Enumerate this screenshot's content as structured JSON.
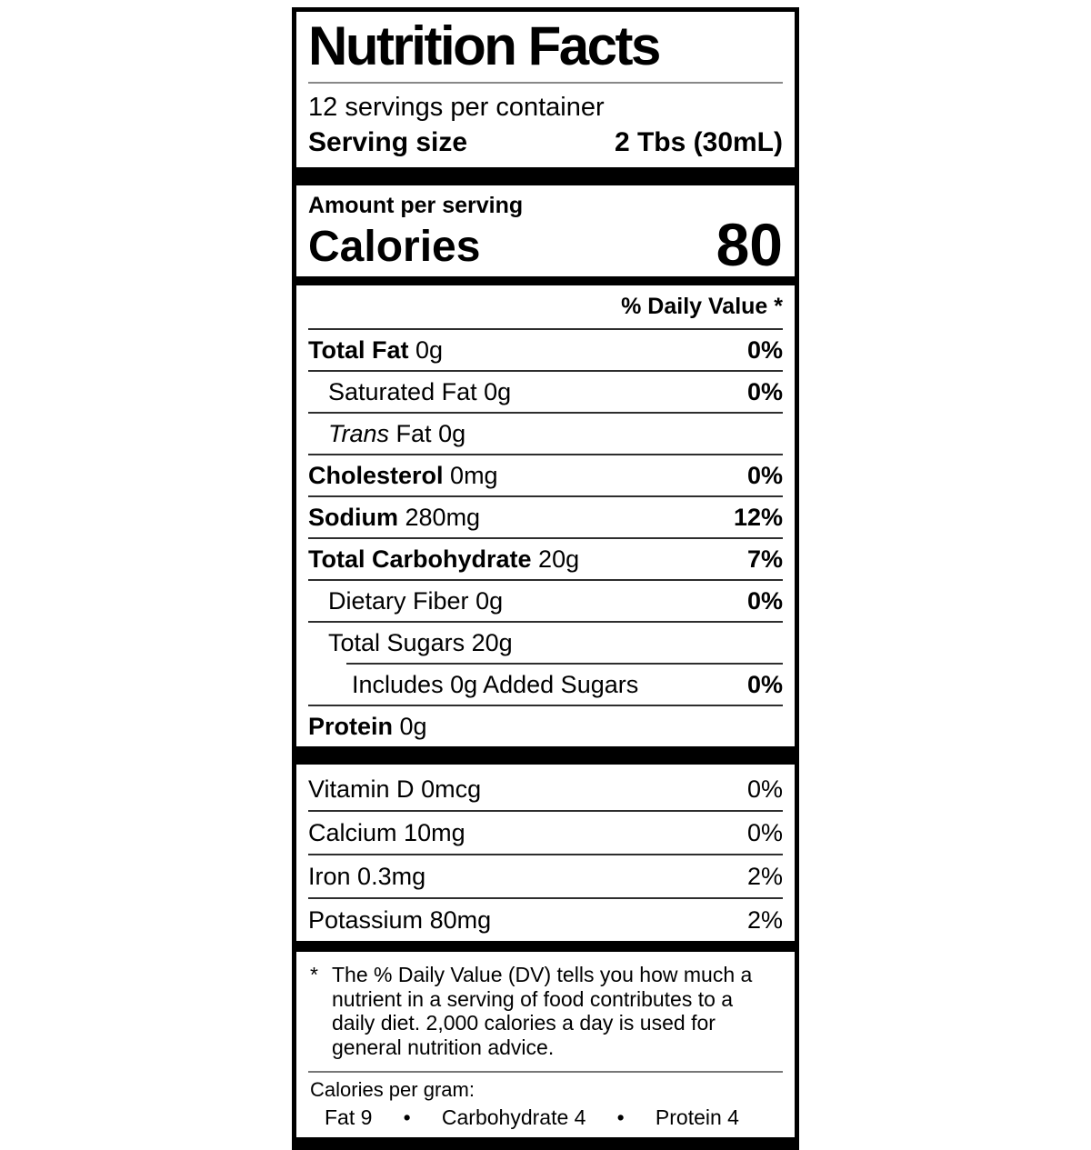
{
  "label": {
    "title": "Nutrition Facts",
    "servings_per_container": "12 servings per container",
    "serving_size_label": "Serving size",
    "serving_size_value": "2 Tbs (30mL)",
    "amount_per_serving": "Amount per serving",
    "calories_label": "Calories",
    "calories_value": "80",
    "daily_value_header": "% Daily Value *"
  },
  "nutrients": [
    {
      "name": "Total Fat",
      "value": "0g",
      "dv": "0%"
    },
    {
      "name": "Saturated Fat",
      "value": "0g",
      "dv": "0%"
    },
    {
      "name_italic": "Trans",
      "name": "Fat",
      "value": "0g",
      "dv": ""
    },
    {
      "name": "Cholesterol",
      "value": "0mg",
      "dv": "0%"
    },
    {
      "name": "Sodium",
      "value": "280mg",
      "dv": "12%"
    },
    {
      "name": "Total Carbohydrate",
      "value": "20g",
      "dv": "7%"
    },
    {
      "name": "Dietary Fiber",
      "value": "0g",
      "dv": "0%"
    },
    {
      "name": "Total Sugars",
      "value": "20g",
      "dv": ""
    },
    {
      "name": "Includes 0g Added Sugars",
      "value": "",
      "dv": "0%"
    },
    {
      "name": "Protein",
      "value": "0g",
      "dv": ""
    }
  ],
  "vitamins": [
    {
      "name": "Vitamin D",
      "value": "0mcg",
      "dv": "0%"
    },
    {
      "name": "Calcium",
      "value": "10mg",
      "dv": "0%"
    },
    {
      "name": "Iron",
      "value": "0.3mg",
      "dv": "2%"
    },
    {
      "name": "Potassium",
      "value": "80mg",
      "dv": "2%"
    }
  ],
  "footnote": {
    "marker": "*",
    "text": "The % Daily Value (DV) tells you how much a nutrient in a serving of food contributes to a daily diet. 2,000 calories a day is used for general nutrition advice."
  },
  "calories_per_gram": {
    "label": "Calories per gram:",
    "separator": "•",
    "items": [
      "Fat 9",
      "Carbohydrate 4",
      "Protein 4"
    ]
  },
  "colors": {
    "ink": "#000000",
    "background": "#ffffff"
  }
}
